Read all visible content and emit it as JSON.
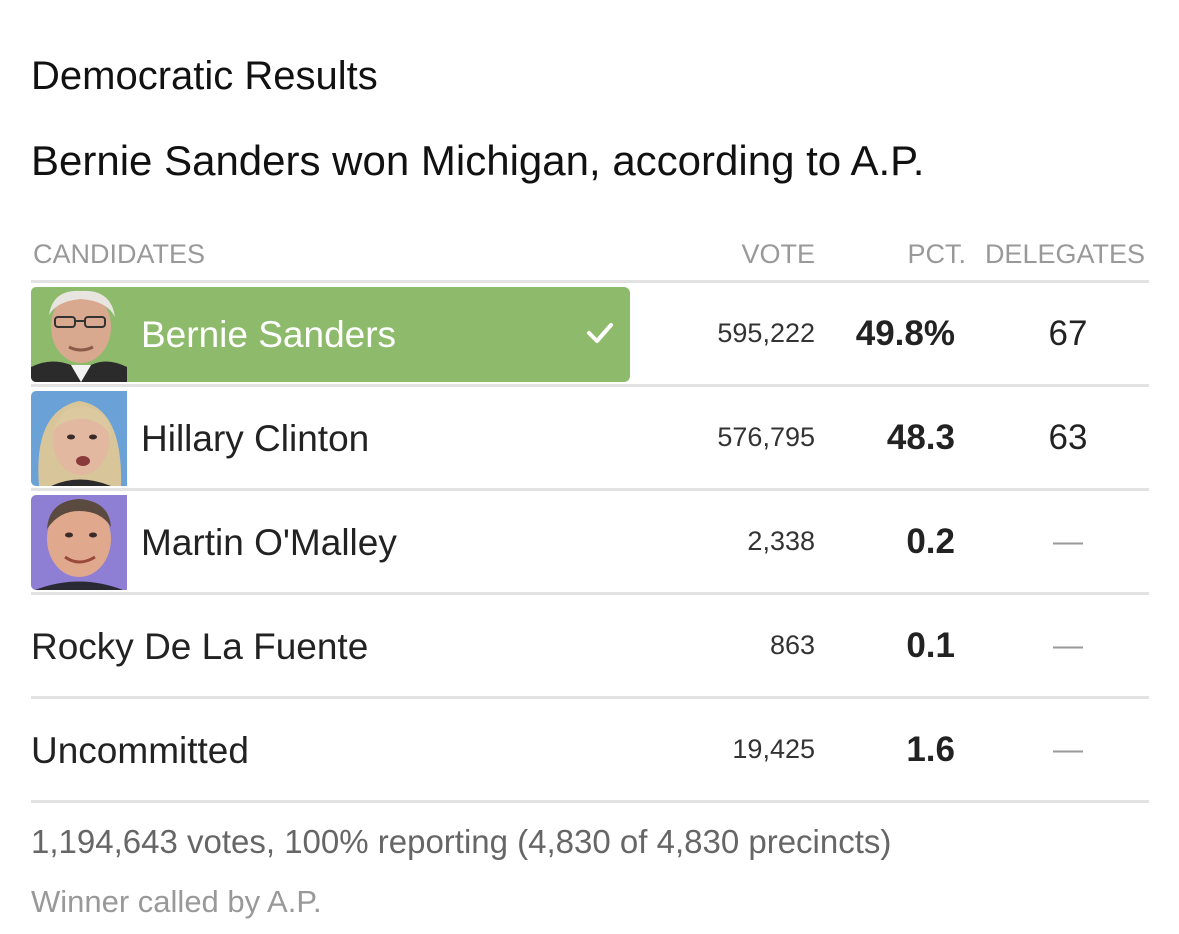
{
  "section_title": "Democratic Results",
  "headline": "Bernie Sanders won Michigan, according to A.P.",
  "table": {
    "headers": {
      "candidates": "CANDIDATES",
      "vote": "VOTE",
      "pct": "PCT.",
      "delegates": "DELEGATES"
    },
    "rows": [
      {
        "name": "Bernie Sanders",
        "vote": "595,222",
        "pct": "49.8%",
        "delegates": "67",
        "winner": true,
        "photo": "bernie-sanders-photo"
      },
      {
        "name": "Hillary Clinton",
        "vote": "576,795",
        "pct": "48.3",
        "delegates": "63",
        "winner": false,
        "photo": "hillary-clinton-photo"
      },
      {
        "name": "Martin O'Malley",
        "vote": "2,338",
        "pct": "0.2",
        "delegates": "—",
        "winner": false,
        "photo": "martin-omalley-photo"
      },
      {
        "name": "Rocky De La Fuente",
        "vote": "863",
        "pct": "0.1",
        "delegates": "—",
        "winner": false
      },
      {
        "name": "Uncommitted",
        "vote": "19,425",
        "pct": "1.6",
        "delegates": "—",
        "winner": false
      }
    ]
  },
  "footer": {
    "stats": "1,194,643 votes, 100% reporting (4,830 of 4,830 precincts)",
    "caller": "Winner called by A.P."
  },
  "colors": {
    "winner_background": "#8dbb6b",
    "sanders_photo_bg": "#8dbb6b",
    "clinton_photo_bg": "#6aa2d8",
    "omalley_photo_bg": "#8f7fd4",
    "divider": "#e2e2e2",
    "muted_text": "#999999"
  },
  "icons": {
    "winner_marker": "checkmark-icon"
  }
}
